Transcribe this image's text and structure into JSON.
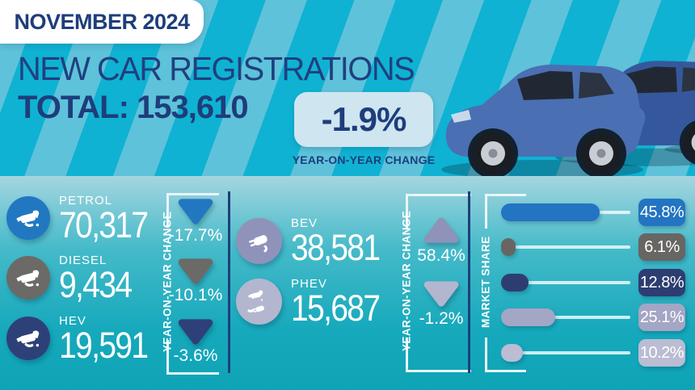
{
  "header": {
    "date_badge": "NOVEMBER 2024",
    "title": "NEW CAR REGISTRATIONS",
    "total_label": "TOTAL:",
    "total_value": "153,610",
    "yoy_change_value": "-1.9%",
    "yoy_change_caption": "YEAR-ON-YEAR CHANGE"
  },
  "left_panel": {
    "yoy_axis_label": "YEAR-ON-YEAR CHANGE",
    "fuels": [
      {
        "label": "PETROL",
        "value": "70,317",
        "yoy": "-17.7%",
        "direction": "down",
        "color": "#2277c1"
      },
      {
        "label": "DIESEL",
        "value": "9,434",
        "yoy": "-10.1%",
        "direction": "down",
        "color": "#6b6a67"
      },
      {
        "label": "HEV",
        "value": "19,591",
        "yoy": "-3.6%",
        "direction": "down",
        "color": "#2e4078"
      }
    ]
  },
  "middle_panel": {
    "yoy_axis_label": "YEAR-ON-YEAR CHANGE",
    "fuels": [
      {
        "label": "BEV",
        "value": "38,581",
        "yoy": "58.4%",
        "direction": "up",
        "color": "#8f93b9"
      },
      {
        "label": "PHEV",
        "value": "15,687",
        "yoy": "-1.2%",
        "direction": "down",
        "color": "#b3b6cf"
      }
    ]
  },
  "market_share": {
    "axis_label": "MARKET SHARE",
    "rows": [
      {
        "label": "45.8%",
        "value": 45.8,
        "color": "#2374c2"
      },
      {
        "label": "6.1%",
        "value": 6.1,
        "color": "#676663"
      },
      {
        "label": "12.8%",
        "value": 12.8,
        "color": "#2d3d71"
      },
      {
        "label": "25.1%",
        "value": 25.1,
        "color": "#a3a6c4"
      },
      {
        "label": "10.2%",
        "value": 10.2,
        "color": "#babdd3"
      }
    ]
  },
  "colors": {
    "navy_text": "#1e3d7b",
    "stripe_light": "#5ec2da",
    "stripe_dark": "#0fb2d3",
    "yoy_box_bg": "#cfe5f0",
    "panel_gradient_top": "#a4d6e0",
    "panel_gradient_bottom": "#0fa3b6"
  },
  "chart_data": {
    "type": "table",
    "title": "NEW CAR REGISTRATIONS — NOVEMBER 2024",
    "total_registrations": 153610,
    "total_yoy_change_pct": -1.9,
    "categories": [
      "PETROL",
      "DIESEL",
      "HEV",
      "BEV",
      "PHEV"
    ],
    "series": [
      {
        "name": "Registrations",
        "values": [
          70317,
          9434,
          19591,
          38581,
          15687
        ]
      },
      {
        "name": "Year-on-year change (%)",
        "values": [
          -17.7,
          -10.1,
          -3.6,
          58.4,
          -1.2
        ]
      },
      {
        "name": "Market share (%)",
        "values": [
          45.8,
          6.1,
          12.8,
          25.1,
          10.2
        ]
      }
    ],
    "legend_position": "none",
    "grid": false
  }
}
